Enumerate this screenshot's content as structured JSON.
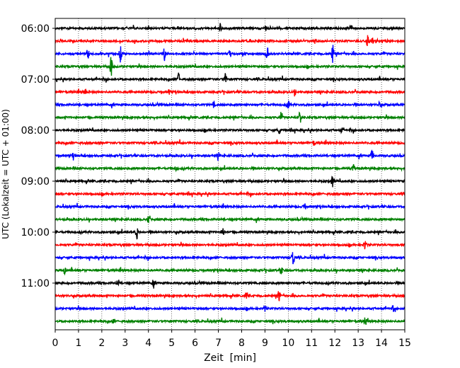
{
  "chart_data": {
    "type": "line",
    "title": "",
    "xlabel": "Zeit  [min]",
    "ylabel": "UTC (Lokalzeit = UTC + 01:00)",
    "xlim": [
      0,
      15
    ],
    "x_ticks": [
      "0",
      "1",
      "2",
      "3",
      "4",
      "5",
      "6",
      "7",
      "8",
      "9",
      "10",
      "11",
      "12",
      "13",
      "14",
      "15"
    ],
    "y_tick_labels": [
      "06:00",
      "07:00",
      "08:00",
      "09:00",
      "10:00",
      "11:00"
    ],
    "grid": "vertical dotted at each minute",
    "colors": [
      "#000000",
      "#ff0000",
      "#0000ff",
      "#008000"
    ],
    "traces": [
      {
        "start": "06:00",
        "events": [
          [
            7.1,
            0.9
          ],
          [
            9.0,
            0.8
          ],
          [
            12.7,
            1.1
          ]
        ]
      },
      {
        "start": "06:15",
        "events": [
          [
            13.4,
            1.2
          ],
          [
            13.6,
            0.8
          ],
          [
            14.2,
            0.5
          ]
        ]
      },
      {
        "start": "06:30",
        "events": [
          [
            1.4,
            1.3
          ],
          [
            2.8,
            2.0
          ],
          [
            4.7,
            1.8
          ],
          [
            7.5,
            0.8
          ],
          [
            9.1,
            2.2
          ],
          [
            11.9,
            2.4
          ]
        ]
      },
      {
        "start": "06:45",
        "events": [
          [
            2.4,
            2.6
          ]
        ]
      },
      {
        "start": "07:00",
        "events": [
          [
            5.3,
            1.6
          ],
          [
            7.3,
            1.3
          ]
        ]
      },
      {
        "start": "07:15",
        "events": [
          [
            1.3,
            0.6
          ],
          [
            4.9,
            0.6
          ],
          [
            10.3,
            0.5
          ]
        ]
      },
      {
        "start": "07:30",
        "events": [
          [
            6.8,
            0.6
          ],
          [
            10.0,
            0.9
          ],
          [
            13.9,
            0.5
          ]
        ]
      },
      {
        "start": "07:45",
        "events": [
          [
            9.7,
            1.1
          ],
          [
            10.5,
            1.8
          ]
        ]
      },
      {
        "start": "08:00",
        "events": [
          [
            9.6,
            0.8
          ],
          [
            10.1,
            0.6
          ],
          [
            12.3,
            0.5
          ]
        ]
      },
      {
        "start": "08:15",
        "events": [
          [
            11.1,
            0.6
          ]
        ]
      },
      {
        "start": "08:30",
        "events": [
          [
            0.8,
            0.9
          ],
          [
            7.0,
            0.7
          ],
          [
            13.6,
            1.4
          ]
        ]
      },
      {
        "start": "08:45",
        "events": [
          [
            5.2,
            0.5
          ],
          [
            12.8,
            0.9
          ]
        ]
      },
      {
        "start": "09:00",
        "events": [
          [
            11.9,
            1.5
          ]
        ]
      },
      {
        "start": "09:15",
        "events": [
          [
            5.7,
            0.6
          ]
        ]
      },
      {
        "start": "09:30",
        "events": [
          [
            10.7,
            1.0
          ]
        ]
      },
      {
        "start": "09:45",
        "events": [
          [
            4.0,
            0.9
          ]
        ]
      },
      {
        "start": "10:00",
        "events": [
          [
            3.5,
            1.5
          ],
          [
            7.2,
            1.1
          ]
        ]
      },
      {
        "start": "10:15",
        "events": [
          [
            13.3,
            1.4
          ]
        ]
      },
      {
        "start": "10:30",
        "events": [
          [
            10.2,
            2.4
          ]
        ]
      },
      {
        "start": "10:45",
        "events": [
          [
            0.4,
            0.7
          ],
          [
            9.7,
            0.9
          ]
        ]
      },
      {
        "start": "11:00",
        "events": [
          [
            2.7,
            0.8
          ],
          [
            4.2,
            0.6
          ]
        ]
      },
      {
        "start": "11:15",
        "events": [
          [
            8.2,
            1.0
          ],
          [
            9.6,
            1.7
          ]
        ]
      },
      {
        "start": "11:30",
        "events": [
          [
            9.0,
            0.6
          ],
          [
            14.5,
            0.6
          ]
        ]
      },
      {
        "start": "11:45",
        "events": [
          [
            2.5,
            0.6
          ],
          [
            13.3,
            1.1
          ]
        ]
      }
    ]
  }
}
